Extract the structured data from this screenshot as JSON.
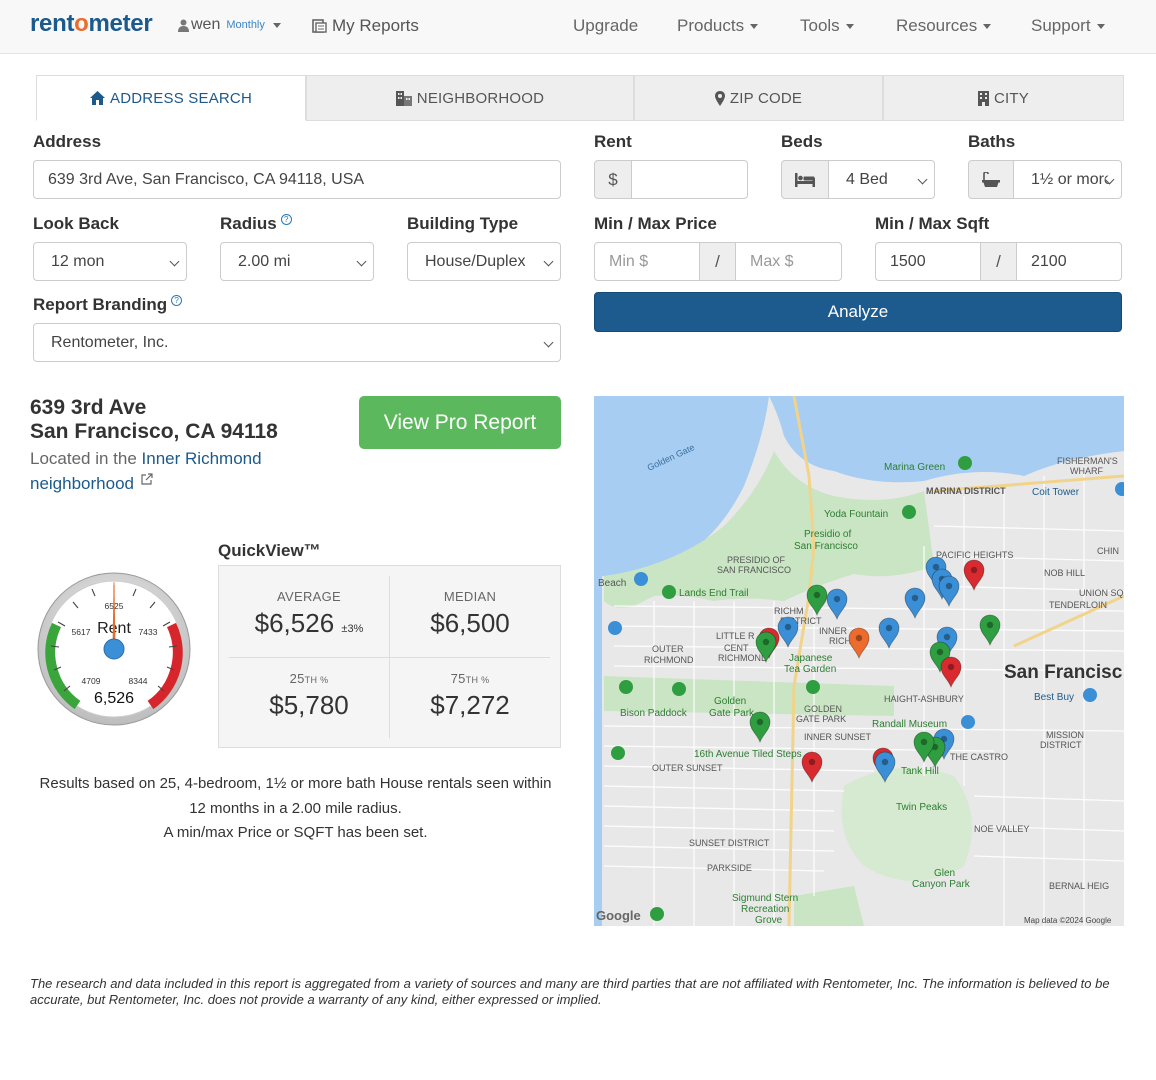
{
  "brand": {
    "logo_a": "rent",
    "logo_o": "o",
    "logo_b": "meter",
    "color": "#1c5a8c",
    "accent": "#ec6b2d"
  },
  "nav": {
    "user": "wen",
    "plan": "Monthly",
    "reports": "My Reports",
    "upgrade": "Upgrade",
    "products": "Products",
    "tools": "Tools",
    "resources": "Resources",
    "support": "Support"
  },
  "tabs": {
    "address": "ADDRESS SEARCH",
    "neighborhood": "NEIGHBORHOOD",
    "zip": "ZIP CODE",
    "city": "CITY"
  },
  "form": {
    "address_label": "Address",
    "address_value": "639 3rd Ave, San Francisco, CA 94118, USA",
    "rent_label": "Rent",
    "rent_symbol": "$",
    "beds_label": "Beds",
    "beds_value": "4 Bed",
    "baths_label": "Baths",
    "baths_value": "1½ or more",
    "lookback_label": "Look Back",
    "lookback_value": "12 mon",
    "radius_label": "Radius",
    "radius_value": "2.00 mi",
    "building_label": "Building Type",
    "building_value": "House/Duplex",
    "price_label": "Min / Max Price",
    "price_min_ph": "Min $",
    "price_max_ph": "Max $",
    "sqft_label": "Min / Max Sqft",
    "sqft_min": "1500",
    "sqft_max": "2100",
    "slash": "/",
    "branding_label": "Report Branding",
    "branding_value": "Rentometer, Inc.",
    "analyze": "Analyze"
  },
  "result": {
    "street": "639 3rd Ave",
    "city": "San Francisco, CA 94118",
    "located_prefix": "Located in the",
    "neighborhood_link": "Inner Richmond neighborhood",
    "pro_button": "View Pro Report"
  },
  "gauge": {
    "label": "Rent",
    "value": "6,526",
    "top": "6525",
    "left": "5617",
    "right": "7433",
    "low": "4709",
    "high": "8344"
  },
  "quickview": {
    "title": "QuickView™",
    "average_label": "AVERAGE",
    "average_value": "$6,526",
    "average_margin": "±3%",
    "median_label": "MEDIAN",
    "median_value": "$6,500",
    "p25_num": "25",
    "p75_num": "75",
    "pct_suffix": "TH %",
    "p25_value": "$5,780",
    "p75_value": "$7,272"
  },
  "results_text": {
    "line1": "Results based on 25, 4-bedroom, 1½ or more bath House rentals seen within 12 months in a 2.00 mile radius.",
    "line2": "A min/max Price or SQFT has been set."
  },
  "map": {
    "labels": [
      "Golden Gate",
      "Marina Green",
      "FISHERMAN'S WHARF",
      "MARINA DISTRICT",
      "Coit Tower",
      "Yoda Fountain",
      "Presidio of San Francisco",
      "PRESIDIO OF SAN FRANCISCO",
      "PACIFIC HEIGHTS",
      "NOB HILL",
      "CHIN",
      "Lands End Trail",
      "Beach",
      "UNION SQ",
      "TENDERLOIN",
      "RICHM DISTRICT",
      "INNER RICHMOND",
      "LITTLE R",
      "CENTRAL RICHMOND",
      "OUTER RICHMOND",
      "Japanese Tea Garden",
      "San Francisc",
      "HAIGHT-ASHBURY",
      "Best Buy",
      "Bison Paddock",
      "Golden Gate Park",
      "GOLDEN GATE PARK",
      "Randall Museum",
      "INNER SUNSET",
      "16th Avenue Tiled Steps",
      "OUTER SUNSET",
      "Tank Hill",
      "THE CASTRO",
      "MISSION DISTRICT",
      "Twin Peaks",
      "NOE VALLEY",
      "SUNSET DISTRICT",
      "PARKSIDE",
      "Glen Canyon Park",
      "BERNAL HEIG",
      "Sigmund Stern Recreation Grove",
      "Map data ©2024 Google",
      "Google"
    ],
    "pin_colors": {
      "high": "#d92b2f",
      "low": "#2e9e41",
      "mid": "#3a8fd6",
      "subject": "#ec6b2d"
    }
  },
  "disclaimer": "The research and data included in this report is aggregated from a variety of sources and many are third parties that are not affiliated with Rentometer, Inc. The information is believed to be accurate, but Rentometer, Inc. does not provide a warranty of any kind, either expressed or implied."
}
